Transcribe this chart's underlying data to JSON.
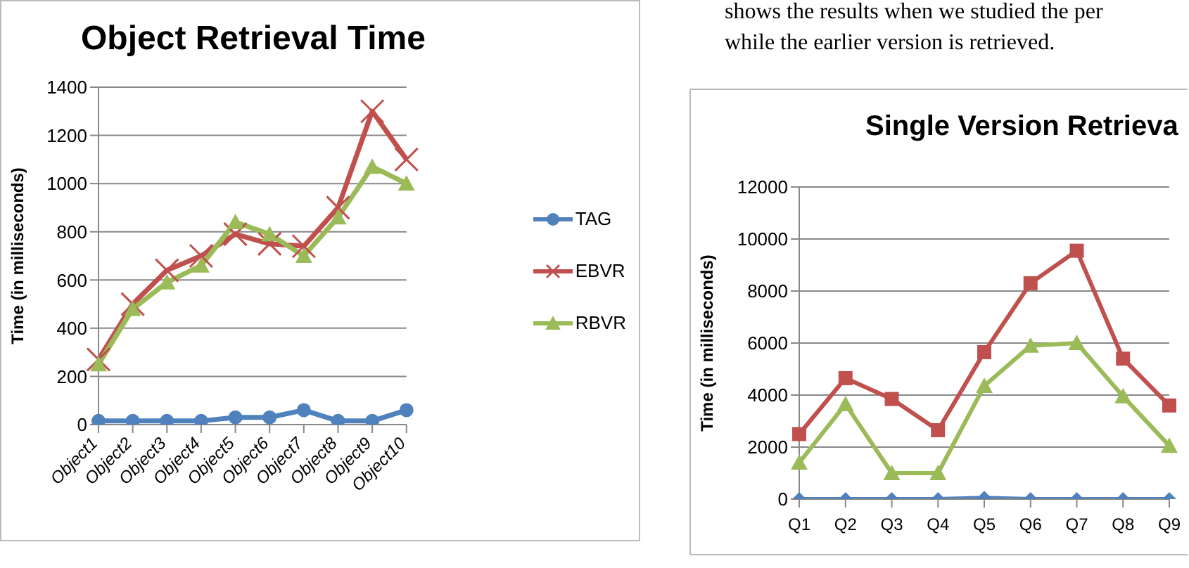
{
  "chart_data": [
    {
      "type": "line",
      "title": "Object Retrieval Time",
      "ylabel": "Time (in milliseconds)",
      "categories": [
        "Object1",
        "Object2",
        "Object3",
        "Object4",
        "Object5",
        "Object6",
        "Object7",
        "Object8",
        "Object9",
        "Object10"
      ],
      "series": [
        {
          "name": "TAG",
          "color": "#4f81bd",
          "marker": "circle",
          "values": [
            15,
            15,
            15,
            15,
            30,
            30,
            60,
            15,
            15,
            60
          ]
        },
        {
          "name": "EBVR",
          "color": "#c0504d",
          "marker": "cross",
          "values": [
            270,
            500,
            640,
            700,
            790,
            750,
            740,
            900,
            1300,
            1100
          ]
        },
        {
          "name": "RBVR",
          "color": "#9bbb59",
          "marker": "triangle",
          "values": [
            250,
            480,
            590,
            660,
            840,
            790,
            700,
            860,
            1070,
            1000
          ]
        }
      ],
      "ylim": [
        0,
        1400
      ],
      "yticks": [
        0,
        200,
        400,
        600,
        800,
        1000,
        1200,
        1400
      ],
      "grid": "y",
      "legend": "right"
    },
    {
      "type": "line",
      "title": "Single Version Retrieva",
      "ylabel": "Time (in milliseconds)",
      "annotations": [
        "shows the results when we studied the per",
        "while the earlier version is retrieved."
      ],
      "categories": [
        "Q1",
        "Q2",
        "Q3",
        "Q4",
        "Q5",
        "Q6",
        "Q7",
        "Q8",
        "Q9"
      ],
      "series": [
        {
          "color": "#4f81bd",
          "marker": "diamond",
          "values": [
            0,
            0,
            0,
            0,
            50,
            0,
            0,
            0,
            0
          ]
        },
        {
          "color": "#c0504d",
          "marker": "square",
          "values": [
            2500,
            4650,
            3850,
            2650,
            5650,
            8300,
            9550,
            5400,
            3600
          ]
        },
        {
          "color": "#9bbb59",
          "marker": "triangle",
          "values": [
            1400,
            3650,
            1000,
            1000,
            4350,
            5900,
            6000,
            3950,
            2050
          ]
        }
      ],
      "ylim": [
        0,
        12000
      ],
      "yticks": [
        0,
        2000,
        4000,
        6000,
        8000,
        10000,
        12000
      ],
      "grid": "y"
    }
  ]
}
